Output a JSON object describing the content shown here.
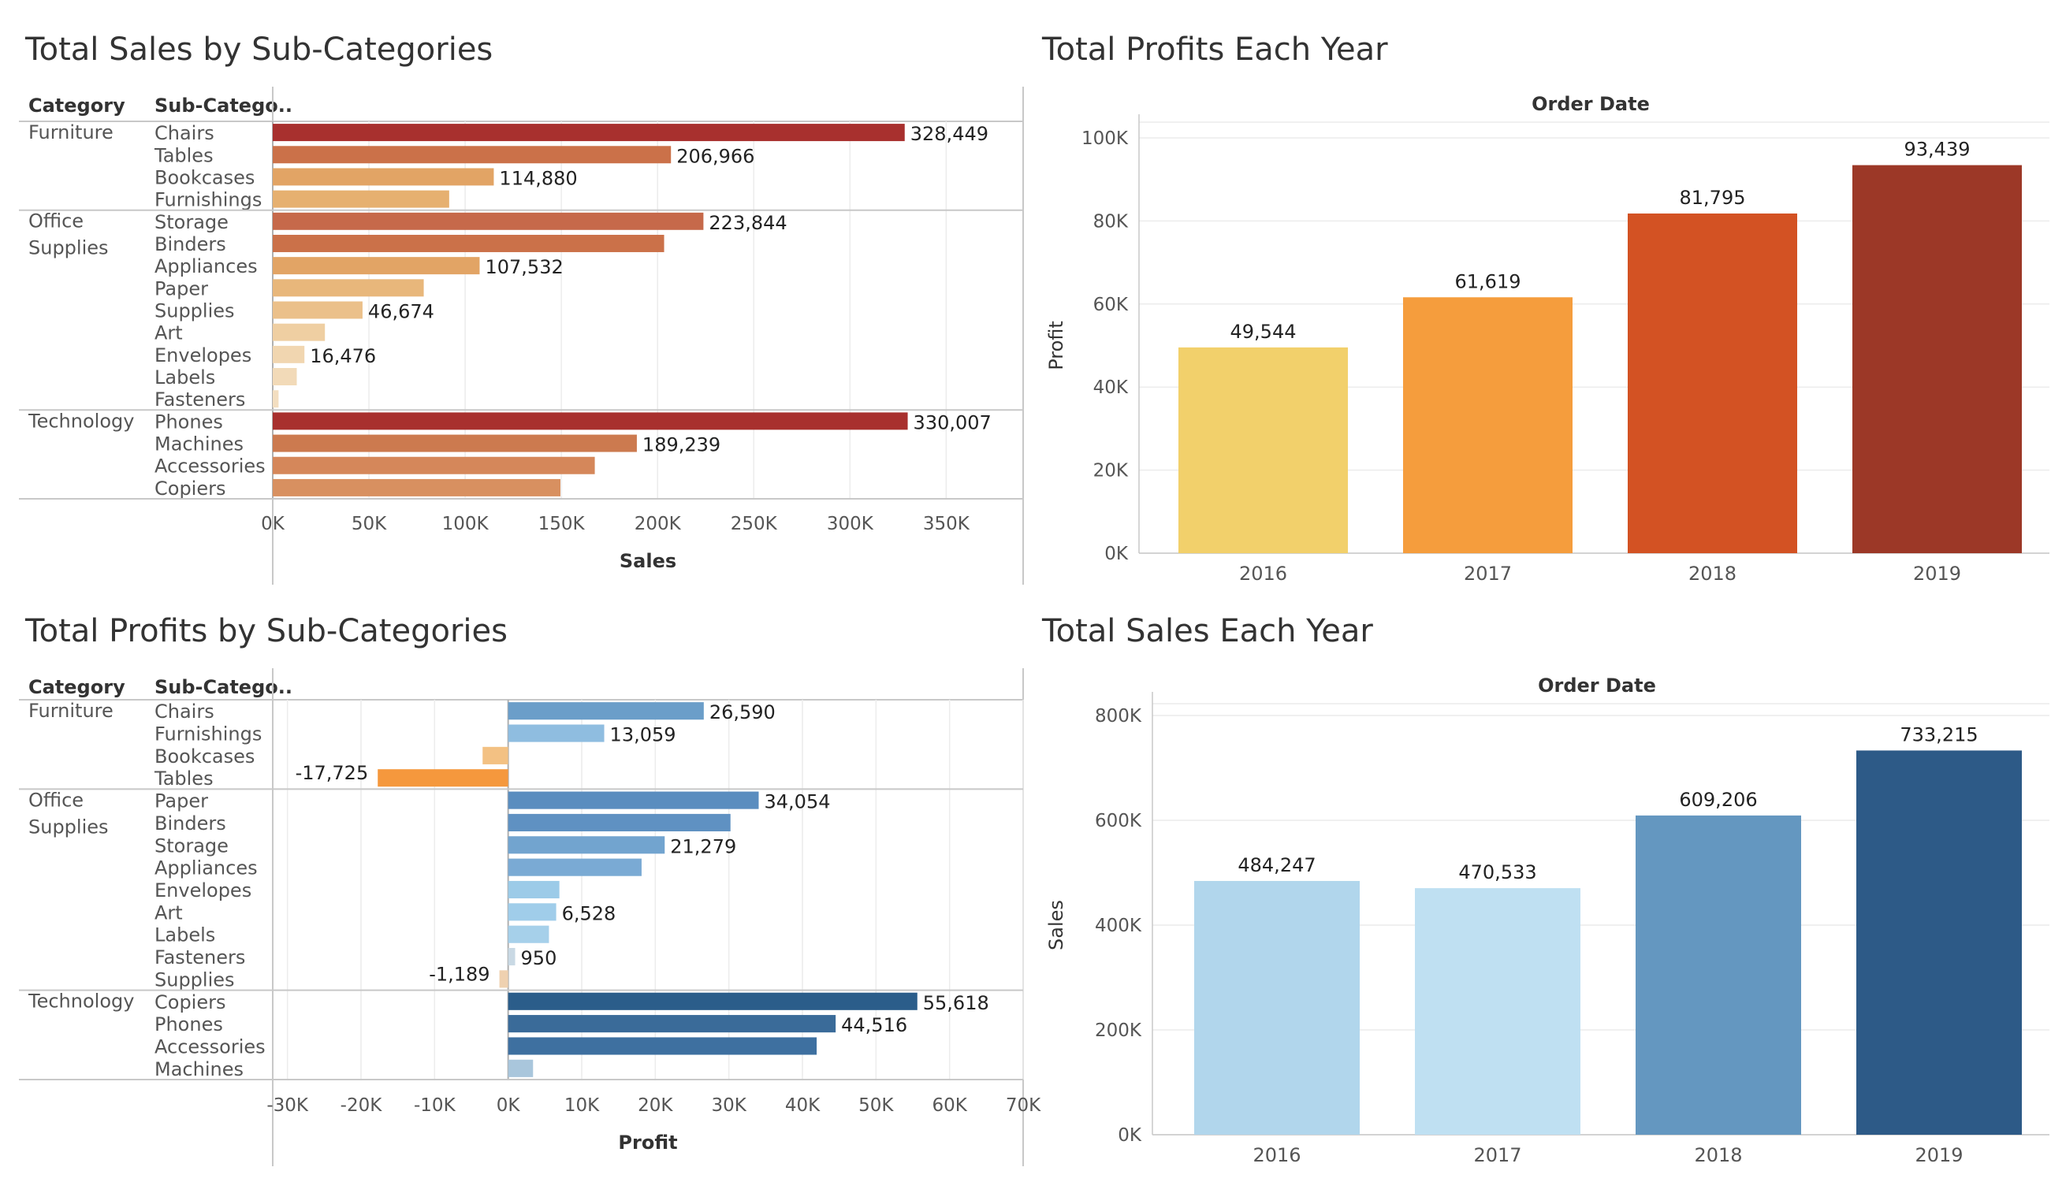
{
  "chart_data": [
    {
      "id": "sales-by-subcat",
      "type": "bar",
      "orientation": "horizontal",
      "title": "Total Sales by Sub-Categories",
      "col_headers": [
        "Category",
        "Sub-Catego.."
      ],
      "xlabel": "Sales",
      "xlim": [
        0,
        390000
      ],
      "xticks": [
        0,
        50000,
        100000,
        150000,
        200000,
        250000,
        300000,
        350000
      ],
      "xtick_labels": [
        "0K",
        "50K",
        "100K",
        "150K",
        "200K",
        "250K",
        "300K",
        "350K"
      ],
      "groups": [
        {
          "category": [
            "Furniture"
          ],
          "rows": [
            {
              "label": "Chairs",
              "value": 328449,
              "label_text": "328,449",
              "color": "#a8302e"
            },
            {
              "label": "Tables",
              "value": 206966,
              "label_text": "206,966",
              "color": "#cb7149"
            },
            {
              "label": "Bookcases",
              "value": 114880,
              "label_text": "114,880",
              "color": "#e2a465"
            },
            {
              "label": "Furnishings",
              "value": 91705,
              "label_text": "",
              "color": "#e6b070"
            }
          ]
        },
        {
          "category": [
            "Office",
            "Supplies"
          ],
          "rows": [
            {
              "label": "Storage",
              "value": 223844,
              "label_text": "223,844",
              "color": "#c6694a"
            },
            {
              "label": "Binders",
              "value": 203413,
              "label_text": "",
              "color": "#cb7149"
            },
            {
              "label": "Appliances",
              "value": 107532,
              "label_text": "107,532",
              "color": "#e2a465"
            },
            {
              "label": "Paper",
              "value": 78479,
              "label_text": "",
              "color": "#e8b77b"
            },
            {
              "label": "Supplies",
              "value": 46674,
              "label_text": "46,674",
              "color": "#ebc08a"
            },
            {
              "label": "Art",
              "value": 27119,
              "label_text": "",
              "color": "#efcfa2"
            },
            {
              "label": "Envelopes",
              "value": 16476,
              "label_text": "16,476",
              "color": "#f1d6b0"
            },
            {
              "label": "Labels",
              "value": 12486,
              "label_text": "",
              "color": "#f2dab8"
            },
            {
              "label": "Fasteners",
              "value": 3024,
              "label_text": "",
              "color": "#f3dec0"
            }
          ]
        },
        {
          "category": [
            "Technology"
          ],
          "rows": [
            {
              "label": "Phones",
              "value": 330007,
              "label_text": "330,007",
              "color": "#a8302e"
            },
            {
              "label": "Machines",
              "value": 189239,
              "label_text": "189,239",
              "color": "#cc7a4f"
            },
            {
              "label": "Accessories",
              "value": 167380,
              "label_text": "",
              "color": "#d5875a"
            },
            {
              "label": "Copiers",
              "value": 149528,
              "label_text": "",
              "color": "#d89060"
            }
          ]
        }
      ]
    },
    {
      "id": "profits-by-year",
      "type": "bar",
      "orientation": "vertical",
      "title": "Total Profits Each Year",
      "header": "Order Date",
      "ylabel": "Profit",
      "ylim": [
        0,
        100000
      ],
      "yticks": [
        0,
        20000,
        40000,
        60000,
        80000,
        100000
      ],
      "ytick_labels": [
        "0K",
        "20K",
        "40K",
        "60K",
        "80K",
        "100K"
      ],
      "categories": [
        "2016",
        "2017",
        "2018",
        "2019"
      ],
      "values": [
        49544,
        61619,
        81795,
        93439
      ],
      "value_labels": [
        "49,544",
        "61,619",
        "81,795",
        "93,439"
      ],
      "colors": [
        "#f2d06b",
        "#f59d3d",
        "#d35223",
        "#9c3827"
      ]
    },
    {
      "id": "profits-by-subcat",
      "type": "bar",
      "orientation": "horizontal",
      "title": "Total Profits by Sub-Categories",
      "col_headers": [
        "Category",
        "Sub-Catego.."
      ],
      "xlabel": "Profit",
      "xlim": [
        -32000,
        70000
      ],
      "xticks": [
        -30000,
        -20000,
        -10000,
        0,
        10000,
        20000,
        30000,
        40000,
        50000,
        60000,
        70000
      ],
      "xtick_labels": [
        "-30K",
        "-20K",
        "-10K",
        "0K",
        "10K",
        "20K",
        "30K",
        "40K",
        "50K",
        "60K",
        "70K"
      ],
      "groups": [
        {
          "category": [
            "Furniture"
          ],
          "rows": [
            {
              "label": "Chairs",
              "value": 26590,
              "label_text": "26,590",
              "color": "#6b9ec9"
            },
            {
              "label": "Furnishings",
              "value": 13059,
              "label_text": "13,059",
              "color": "#8fbde0"
            },
            {
              "label": "Bookcases",
              "value": -3473,
              "label_text": "",
              "color": "#f3c183"
            },
            {
              "label": "Tables",
              "value": -17725,
              "label_text": "-17,725",
              "color": "#f5983d"
            }
          ]
        },
        {
          "category": [
            "Office",
            "Supplies"
          ],
          "rows": [
            {
              "label": "Paper",
              "value": 34054,
              "label_text": "34,054",
              "color": "#5a8dbf"
            },
            {
              "label": "Binders",
              "value": 30222,
              "label_text": "",
              "color": "#5f91c2"
            },
            {
              "label": "Storage",
              "value": 21279,
              "label_text": "21,279",
              "color": "#72a4cf"
            },
            {
              "label": "Appliances",
              "value": 18138,
              "label_text": "",
              "color": "#7aaad4"
            },
            {
              "label": "Envelopes",
              "value": 6964,
              "label_text": "",
              "color": "#9ccbe8"
            },
            {
              "label": "Art",
              "value": 6528,
              "label_text": "6,528",
              "color": "#a0cdea"
            },
            {
              "label": "Labels",
              "value": 5546,
              "label_text": "",
              "color": "#a6d0ea"
            },
            {
              "label": "Fasteners",
              "value": 950,
              "label_text": "950",
              "color": "#c9d9e4"
            },
            {
              "label": "Supplies",
              "value": -1189,
              "label_text": "-1,189",
              "color": "#efd1b0"
            }
          ]
        },
        {
          "category": [
            "Technology"
          ],
          "rows": [
            {
              "label": "Copiers",
              "value": 55618,
              "label_text": "55,618",
              "color": "#2b5d8a"
            },
            {
              "label": "Phones",
              "value": 44516,
              "label_text": "44,516",
              "color": "#3a6b99"
            },
            {
              "label": "Accessories",
              "value": 41937,
              "label_text": "",
              "color": "#3e70a0"
            },
            {
              "label": "Machines",
              "value": 3385,
              "label_text": "",
              "color": "#a9c6dc"
            }
          ]
        }
      ]
    },
    {
      "id": "sales-by-year",
      "type": "bar",
      "orientation": "vertical",
      "title": "Total Sales Each Year",
      "header": "Order Date",
      "ylabel": "Sales",
      "ylim": [
        0,
        800000
      ],
      "yticks": [
        0,
        200000,
        400000,
        600000,
        800000
      ],
      "ytick_labels": [
        "0K",
        "200K",
        "400K",
        "600K",
        "800K"
      ],
      "categories": [
        "2016",
        "2017",
        "2018",
        "2019"
      ],
      "values": [
        484247,
        470533,
        609206,
        733215
      ],
      "value_labels": [
        "484,247",
        "470,533",
        "609,206",
        "733,215"
      ],
      "colors": [
        "#b1d6ec",
        "#bfe0f2",
        "#6497c0",
        "#2d5a87"
      ]
    }
  ]
}
